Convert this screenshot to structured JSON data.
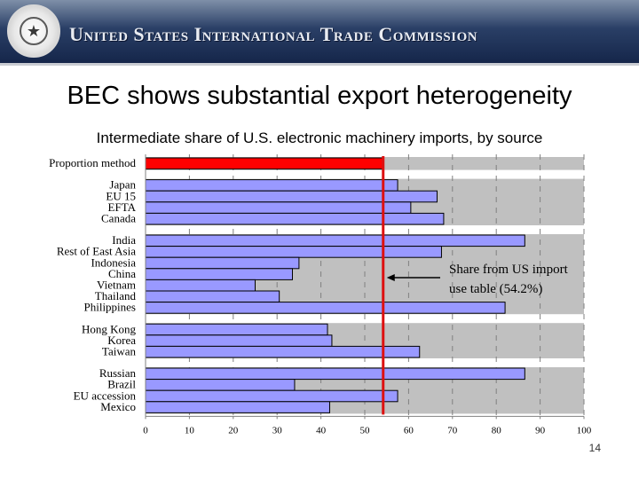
{
  "header": {
    "organization": "United States International Trade Commission",
    "seal_icon": "usitc-seal-icon"
  },
  "slide": {
    "title": "BEC shows substantial export heterogeneity",
    "page_number": "14"
  },
  "chart_data": {
    "type": "bar",
    "orientation": "horizontal",
    "title": "Intermediate share of U.S. electronic machinery imports, by source",
    "xlabel": "",
    "ylabel": "",
    "xlim": [
      0,
      100
    ],
    "xticks": [
      "0",
      "10",
      "20",
      "30",
      "40",
      "50",
      "60",
      "70",
      "80",
      "90",
      "100"
    ],
    "grid": true,
    "groups": [
      {
        "bars": [
          {
            "label": "Proportion method",
            "value": 54.2,
            "highlight": true
          }
        ]
      },
      {
        "bars": [
          {
            "label": "Japan",
            "value": 57.5
          },
          {
            "label": "EU 15",
            "value": 66.5
          },
          {
            "label": "EFTA",
            "value": 60.5
          },
          {
            "label": "Canada",
            "value": 68
          }
        ]
      },
      {
        "bars": [
          {
            "label": "India",
            "value": 86.5
          },
          {
            "label": "Rest of East Asia",
            "value": 67.5
          },
          {
            "label": "Indonesia",
            "value": 35
          },
          {
            "label": "China",
            "value": 33.5
          },
          {
            "label": "Vietnam",
            "value": 25
          },
          {
            "label": "Thailand",
            "value": 30.5
          },
          {
            "label": "Philippines",
            "value": 82
          }
        ]
      },
      {
        "bars": [
          {
            "label": "Hong Kong",
            "value": 41.5
          },
          {
            "label": "Korea",
            "value": 42.5
          },
          {
            "label": "Taiwan",
            "value": 62.5
          }
        ]
      },
      {
        "bars": [
          {
            "label": "Russian",
            "value": 86.5
          },
          {
            "label": "Brazil",
            "value": 34
          },
          {
            "label": "EU accession",
            "value": 57.5
          },
          {
            "label": "Mexico",
            "value": 42
          }
        ]
      }
    ],
    "reference_line": {
      "value": 54.2,
      "label_line1": "Share from US import",
      "label_line2": "use table (54.2%)"
    },
    "colors": {
      "bar": "#9999ff",
      "highlight": "#ff0000",
      "reference_line": "#dd1111",
      "grid": "#808080"
    }
  }
}
